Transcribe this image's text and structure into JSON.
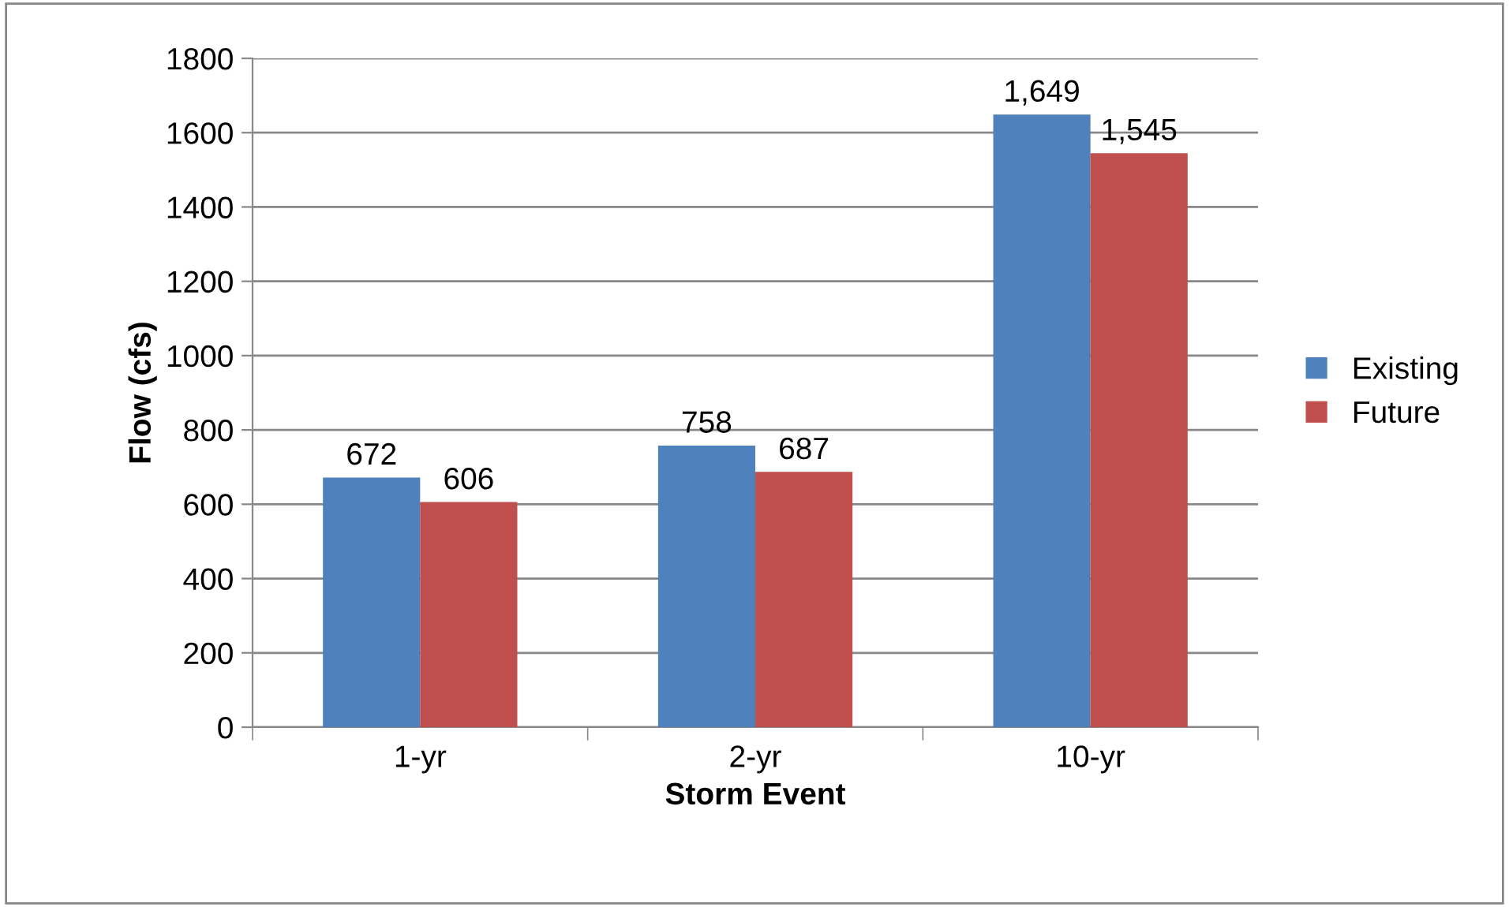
{
  "chart_data": {
    "type": "bar",
    "xlabel": "Storm Event",
    "ylabel": "Flow (cfs)",
    "categories": [
      "1-yr",
      "2-yr",
      "10-yr"
    ],
    "series": [
      {
        "name": "Existing",
        "color": "#4f81bd",
        "values": [
          672,
          758,
          1649
        ],
        "value_labels": [
          "672",
          "758",
          "1,649"
        ]
      },
      {
        "name": "Future",
        "color": "#c0504d",
        "values": [
          606,
          687,
          1545
        ],
        "value_labels": [
          "606",
          "687",
          "1,545"
        ]
      }
    ],
    "ylim": [
      0,
      1800
    ],
    "yticks": [
      0,
      200,
      400,
      600,
      800,
      1000,
      1200,
      1400,
      1600,
      1800
    ],
    "grid": "y",
    "legend": "right"
  }
}
